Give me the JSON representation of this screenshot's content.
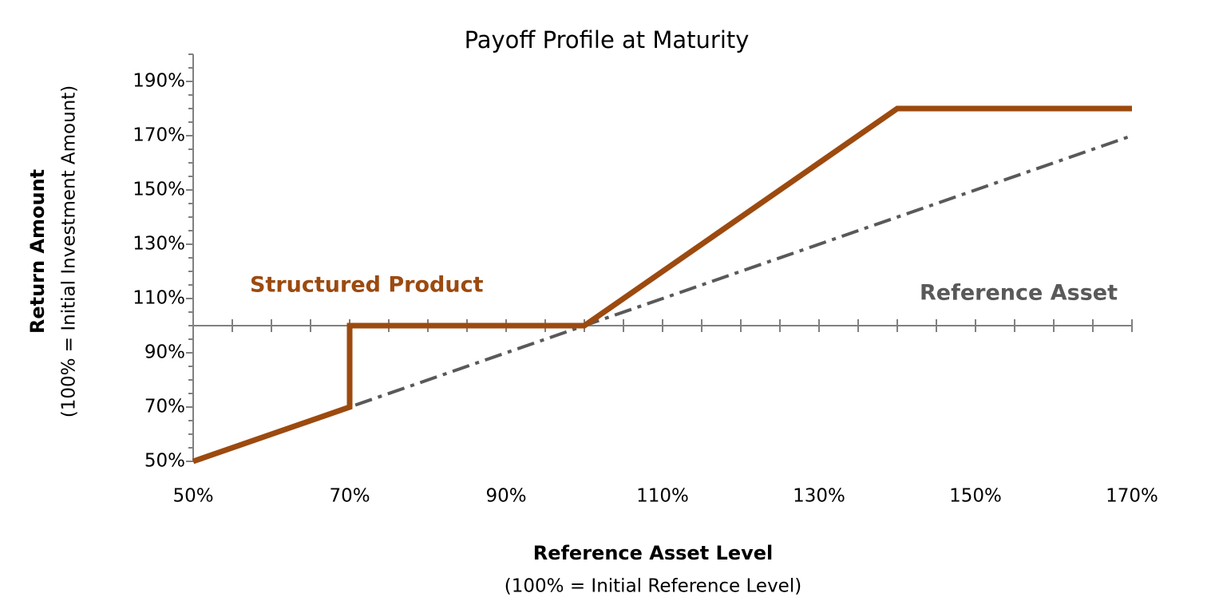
{
  "chart_data": {
    "type": "line",
    "title": "Payoff Profile at Maturity",
    "x_label": "Reference Asset Level",
    "x_sublabel": "(100% = Initial Reference  Level)",
    "y_label": "Return Amount",
    "y_sublabel": "(100% = Initial Investment  Amount)",
    "xlim": [
      50,
      170
    ],
    "ylim": [
      50,
      200
    ],
    "xticks": [
      {
        "value": 50,
        "label": "50%"
      },
      {
        "value": 70,
        "label": "70%"
      },
      {
        "value": 90,
        "label": "90%"
      },
      {
        "value": 110,
        "label": "110%"
      },
      {
        "value": 130,
        "label": "130%"
      },
      {
        "value": 150,
        "label": "150%"
      },
      {
        "value": 170,
        "label": "170%"
      }
    ],
    "yticks": [
      {
        "value": 50,
        "label": "50%"
      },
      {
        "value": 70,
        "label": "70%"
      },
      {
        "value": 90,
        "label": "90%"
      },
      {
        "value": 110,
        "label": "110%"
      },
      {
        "value": 130,
        "label": "130%"
      },
      {
        "value": 150,
        "label": "150%"
      },
      {
        "value": 170,
        "label": "170%"
      },
      {
        "value": 190,
        "label": "190%"
      }
    ],
    "xminorticks": [
      55,
      60,
      65,
      75,
      80,
      85,
      95,
      100,
      105,
      115,
      120,
      125,
      135,
      140,
      145,
      155,
      160,
      165
    ],
    "yminorticks": [
      55,
      60,
      65,
      75,
      80,
      85,
      95,
      100,
      105,
      115,
      120,
      125,
      135,
      140,
      145,
      155,
      160,
      165,
      175,
      180,
      185,
      195,
      200
    ],
    "xaxis_crosses": 100,
    "series": [
      {
        "name": "Reference Asset",
        "color": "#595959",
        "dash": true,
        "x": [
          50,
          170
        ],
        "values": [
          50,
          170
        ]
      },
      {
        "name": "Structured Product",
        "color": "#9c4a0f",
        "dash": false,
        "x": [
          50,
          70,
          70,
          100,
          140,
          170
        ],
        "values": [
          50,
          70,
          100,
          100,
          180,
          180
        ]
      }
    ]
  }
}
